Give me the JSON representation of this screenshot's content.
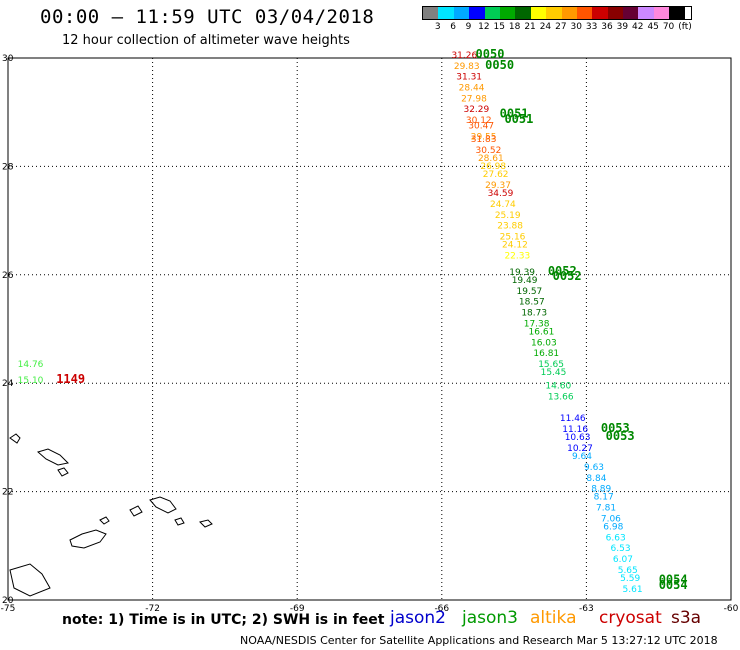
{
  "header": {
    "title": "00:00 – 11:59 UTC 03/04/2018",
    "subtitle": "12 hour collection of altimeter wave heights"
  },
  "legend": {
    "unit": "(ft)",
    "labels": [
      "3",
      "6",
      "9",
      "12",
      "15",
      "18",
      "21",
      "24",
      "27",
      "30",
      "33",
      "36",
      "39",
      "42",
      "45",
      "70"
    ],
    "colors": [
      "#808080",
      "#00e5ff",
      "#00aaff",
      "#0000ff",
      "#00cc55",
      "#00aa00",
      "#006600",
      "#ffff00",
      "#ffcc00",
      "#ff9900",
      "#ff5500",
      "#cc0000",
      "#880000",
      "#660033",
      "#cc88ff",
      "#ff88dd",
      "#000000"
    ]
  },
  "axes": {
    "lon_ticks": [
      "-75",
      "-72",
      "-69",
      "-66",
      "-63",
      "-60"
    ],
    "lat_ticks": [
      "20",
      "22",
      "24",
      "26",
      "28",
      "30"
    ]
  },
  "tracks": [
    {
      "label": "0050",
      "color": "#008800",
      "lat": 30.0,
      "lon": -65.3
    },
    {
      "label": "0050",
      "color": "#008800",
      "lat": 29.8,
      "lon": -65.1
    },
    {
      "label": "0051",
      "color": "#008800",
      "lat": 28.9,
      "lon": -64.8
    },
    {
      "label": "0051",
      "color": "#008800",
      "lat": 28.8,
      "lon": -64.7
    },
    {
      "label": "0052",
      "color": "#008800",
      "lat": 26.0,
      "lon": -63.8
    },
    {
      "label": "0052",
      "color": "#008800",
      "lat": 25.9,
      "lon": -63.7
    },
    {
      "label": "0053",
      "color": "#008800",
      "lat": 23.1,
      "lon": -62.7
    },
    {
      "label": "0053",
      "color": "#008800",
      "lat": 22.95,
      "lon": -62.6
    },
    {
      "label": "0054",
      "color": "#008800",
      "lat": 20.3,
      "lon": -61.5
    },
    {
      "label": "0054",
      "color": "#008800",
      "lat": 20.2,
      "lon": -61.5
    },
    {
      "label": "1149",
      "color": "#cc0000",
      "lat": 24.0,
      "lon": -74.0
    }
  ],
  "values": [
    {
      "v": "31.26",
      "color": "#cc0000",
      "lat": 30.0,
      "lon": -65.8
    },
    {
      "v": "29.83",
      "color": "#ff9900",
      "lat": 29.8,
      "lon": -65.75
    },
    {
      "v": "31.31",
      "color": "#cc0000",
      "lat": 29.6,
      "lon": -65.7
    },
    {
      "v": "28.44",
      "color": "#ff9900",
      "lat": 29.4,
      "lon": -65.65
    },
    {
      "v": "27.98",
      "color": "#ff9900",
      "lat": 29.2,
      "lon": -65.6
    },
    {
      "v": "32.29",
      "color": "#cc0000",
      "lat": 29.0,
      "lon": -65.55
    },
    {
      "v": "30.12",
      "color": "#ff5500",
      "lat": 28.8,
      "lon": -65.5
    },
    {
      "v": "30.47",
      "color": "#ff5500",
      "lat": 28.7,
      "lon": -65.45
    },
    {
      "v": "29.55",
      "color": "#ff9900",
      "lat": 28.5,
      "lon": -65.4
    },
    {
      "v": "31.83",
      "color": "#ff5500",
      "lat": 28.45,
      "lon": -65.4
    },
    {
      "v": "30.52",
      "color": "#ff5500",
      "lat": 28.25,
      "lon": -65.3
    },
    {
      "v": "28.61",
      "color": "#ff9900",
      "lat": 28.1,
      "lon": -65.25
    },
    {
      "v": "26.98",
      "color": "#ffcc00",
      "lat": 27.95,
      "lon": -65.2
    },
    {
      "v": "27.62",
      "color": "#ffcc00",
      "lat": 27.8,
      "lon": -65.15
    },
    {
      "v": "29.37",
      "color": "#ff9900",
      "lat": 27.6,
      "lon": -65.1
    },
    {
      "v": "34.59",
      "color": "#cc0000",
      "lat": 27.45,
      "lon": -65.05
    },
    {
      "v": "24.74",
      "color": "#ffcc00",
      "lat": 27.25,
      "lon": -65.0
    },
    {
      "v": "25.19",
      "color": "#ffcc00",
      "lat": 27.05,
      "lon": -64.9
    },
    {
      "v": "23.88",
      "color": "#ffcc00",
      "lat": 26.85,
      "lon": -64.85
    },
    {
      "v": "25.16",
      "color": "#ffcc00",
      "lat": 26.65,
      "lon": -64.8
    },
    {
      "v": "24.12",
      "color": "#ffcc00",
      "lat": 26.5,
      "lon": -64.75
    },
    {
      "v": "22.33",
      "color": "#ffff00",
      "lat": 26.3,
      "lon": -64.7
    },
    {
      "v": "19.39",
      "color": "#006600",
      "lat": 26.0,
      "lon": -64.6
    },
    {
      "v": "19.49",
      "color": "#006600",
      "lat": 25.85,
      "lon": -64.55
    },
    {
      "v": "19.57",
      "color": "#006600",
      "lat": 25.65,
      "lon": -64.45
    },
    {
      "v": "18.57",
      "color": "#006600",
      "lat": 25.45,
      "lon": -64.4
    },
    {
      "v": "18.73",
      "color": "#006600",
      "lat": 25.25,
      "lon": -64.35
    },
    {
      "v": "17.38",
      "color": "#00aa00",
      "lat": 25.05,
      "lon": -64.3
    },
    {
      "v": "16.61",
      "color": "#00aa00",
      "lat": 24.9,
      "lon": -64.2
    },
    {
      "v": "16.03",
      "color": "#00aa00",
      "lat": 24.7,
      "lon": -64.15
    },
    {
      "v": "16.81",
      "color": "#00aa00",
      "lat": 24.5,
      "lon": -64.1
    },
    {
      "v": "15.65",
      "color": "#00cc55",
      "lat": 24.3,
      "lon": -64.0
    },
    {
      "v": "15.45",
      "color": "#00cc55",
      "lat": 24.15,
      "lon": -63.95
    },
    {
      "v": "14.60",
      "color": "#00cc55",
      "lat": 23.9,
      "lon": -63.85
    },
    {
      "v": "13.66",
      "color": "#00cc55",
      "lat": 23.7,
      "lon": -63.8
    },
    {
      "v": "11.46",
      "color": "#0000ff",
      "lat": 23.3,
      "lon": -63.55
    },
    {
      "v": "11.16",
      "color": "#0000ff",
      "lat": 23.1,
      "lon": -63.5
    },
    {
      "v": "10.63",
      "color": "#0000ff",
      "lat": 22.95,
      "lon": -63.45
    },
    {
      "v": "10.27",
      "color": "#0000ff",
      "lat": 22.75,
      "lon": -63.4
    },
    {
      "v": "9.64",
      "color": "#00aaff",
      "lat": 22.6,
      "lon": -63.3
    },
    {
      "v": "9.63",
      "color": "#00aaff",
      "lat": 22.4,
      "lon": -63.05
    },
    {
      "v": "8.84",
      "color": "#00aaff",
      "lat": 22.2,
      "lon": -63.0
    },
    {
      "v": "8.89",
      "color": "#00aaff",
      "lat": 22.0,
      "lon": -62.9
    },
    {
      "v": "8.17",
      "color": "#00aaff",
      "lat": 21.85,
      "lon": -62.85
    },
    {
      "v": "7.81",
      "color": "#00aaff",
      "lat": 21.65,
      "lon": -62.8
    },
    {
      "v": "7.06",
      "color": "#00aaff",
      "lat": 21.45,
      "lon": -62.7
    },
    {
      "v": "6.98",
      "color": "#00aaff",
      "lat": 21.3,
      "lon": -62.65
    },
    {
      "v": "6.63",
      "color": "#00e5ff",
      "lat": 21.1,
      "lon": -62.6
    },
    {
      "v": "6.53",
      "color": "#00e5ff",
      "lat": 20.9,
      "lon": -62.5
    },
    {
      "v": "6.07",
      "color": "#00e5ff",
      "lat": 20.7,
      "lon": -62.45
    },
    {
      "v": "5.65",
      "color": "#00e5ff",
      "lat": 20.5,
      "lon": -62.35
    },
    {
      "v": "5.59",
      "color": "#00e5ff",
      "lat": 20.35,
      "lon": -62.3
    },
    {
      "v": "5.61",
      "color": "#00e5ff",
      "lat": 20.15,
      "lon": -62.25
    },
    {
      "v": "14.76",
      "color": "#44ee44",
      "lat": 24.3,
      "lon": -74.8
    },
    {
      "v": "15.10",
      "color": "#44ee44",
      "lat": 24.0,
      "lon": -74.8
    }
  ],
  "footer": {
    "note": "note: 1) Time is in UTC; 2) SWH is in feet",
    "missions": [
      {
        "name": "jason2",
        "color": "#0000cc"
      },
      {
        "name": "jason3",
        "color": "#009900"
      },
      {
        "name": "altika",
        "color": "#ff9900"
      },
      {
        "name": "cryosat",
        "color": "#cc0000"
      },
      {
        "name": "s3a",
        "color": "#660000"
      }
    ],
    "credit": "NOAA/NESDIS Center for Satellite Applications and Research    Mar  5 13:27:12 UTC 2018"
  }
}
